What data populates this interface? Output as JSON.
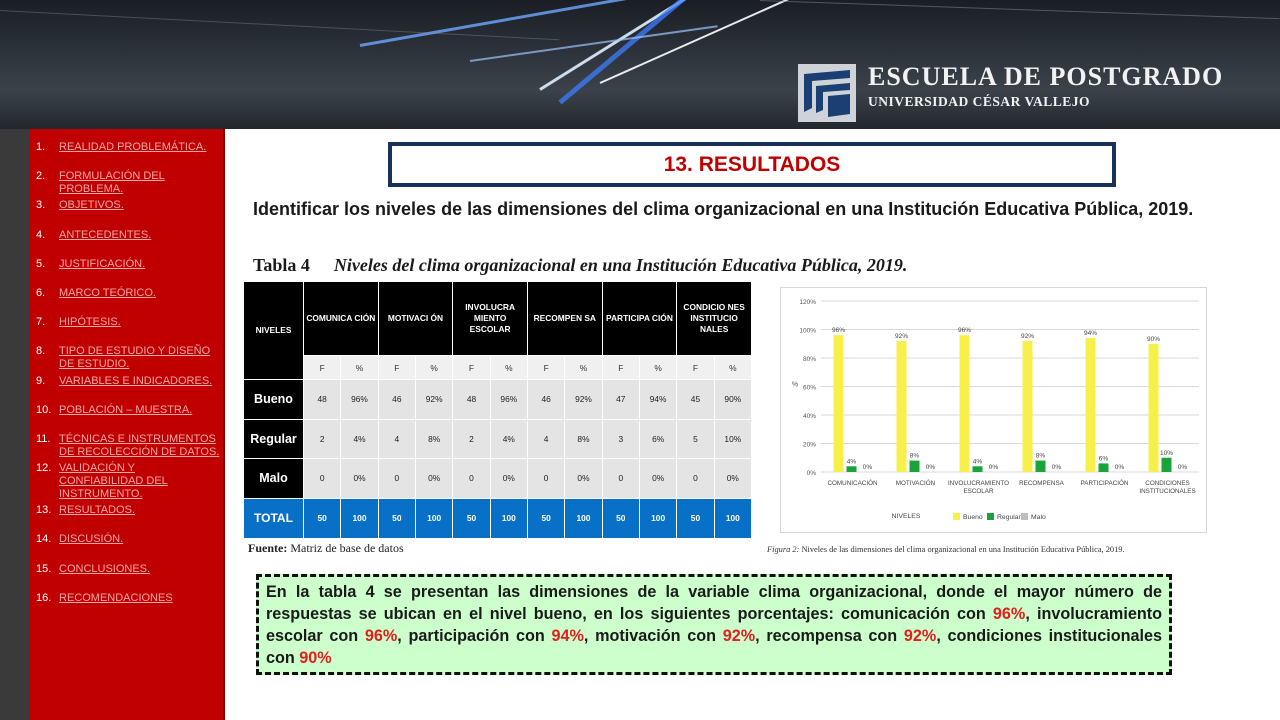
{
  "header": {
    "brand_title": "ESCUELA DE POSTGRADO",
    "brand_subtitle": "UNIVERSIDAD CÉSAR VALLEJO"
  },
  "sidebar": {
    "items": [
      {
        "num": "1.",
        "label": "REALIDAD PROBLEMÁTICA."
      },
      {
        "num": "2.",
        "label": "FORMULACIÓN DEL PROBLEMA."
      },
      {
        "num": "3.",
        "label": "OBJETIVOS."
      },
      {
        "num": "4.",
        "label": "ANTECEDENTES."
      },
      {
        "num": "5.",
        "label": "JUSTIFICACIÓN."
      },
      {
        "num": "6.",
        "label": "MARCO TEÓRICO."
      },
      {
        "num": "7.",
        "label": "HIPÓTESIS."
      },
      {
        "num": "8.",
        "label": "TIPO DE ESTUDIO Y DISEÑO DE ESTUDIO."
      },
      {
        "num": "9.",
        "label": "VARIABLES E INDICADORES."
      },
      {
        "num": "10.",
        "label": "POBLACIÓN – MUESTRA."
      },
      {
        "num": "11.",
        "label": "TÉCNICAS E INSTRUMENTOS DE RECOLECCIÓN DE DATOS."
      },
      {
        "num": "12.",
        "label": "VALIDACIÓN Y CONFIABILIDAD DEL INSTRUMENTO."
      },
      {
        "num": "13.",
        "label": "RESULTADOS."
      },
      {
        "num": "14.",
        "label": "DISCUSIÓN."
      },
      {
        "num": "15.",
        "label": "CONCLUSIONES."
      },
      {
        "num": "16.",
        "label": "RECOMENDACIONES"
      }
    ]
  },
  "main": {
    "title": "13. RESULTADOS",
    "objective": "Identificar los niveles de las dimensiones del clima organizacional en una Institución Educativa Pública, 2019.",
    "table_label": "Tabla 4",
    "table_title": "Niveles del clima organizacional en una Institución Educativa Pública, 2019.",
    "fuente_label": "Fuente:",
    "fuente_text": "Matriz de base de datos",
    "figure_label": "Figura 2:",
    "figure_caption": "Niveles de las dimensiones del clima organizacional en una Institución Educativa Pública, 2019.",
    "summary": {
      "p1": "En la tabla 4 se presentan las dimensiones de la variable clima organizacional, donde el mayor número de respuestas se ubican en el nivel bueno, en los siguientes porcentajes: comunicación con ",
      "v1": "96%",
      "p2": ", involucramiento escolar con ",
      "v2": "96%",
      "p3": ", participación con ",
      "v3": "94%",
      "p4": ", motivación con ",
      "v4": "92%",
      "p5": ", recompensa con ",
      "v5": "92%",
      "p6": ", condiciones institucionales con ",
      "v6": "90%"
    }
  },
  "table": {
    "corner": "NIVELES",
    "columns": [
      "COMUNICA CIÓN",
      "MOTIVACI ÓN",
      "INVOLUCRA MIENTO ESCOLAR",
      "RECOMPEN SA",
      "PARTICIPA CIÓN",
      "CONDICIO NES INSTITUCIO NALES"
    ],
    "sub": [
      "F",
      "%"
    ],
    "rows": [
      {
        "label": "Bueno",
        "cells": [
          "48",
          "96%",
          "46",
          "92%",
          "48",
          "96%",
          "46",
          "92%",
          "47",
          "94%",
          "45",
          "90%"
        ]
      },
      {
        "label": "Regular",
        "cells": [
          "2",
          "4%",
          "4",
          "8%",
          "2",
          "4%",
          "4",
          "8%",
          "3",
          "6%",
          "5",
          "10%"
        ]
      },
      {
        "label": "Malo",
        "cells": [
          "0",
          "0%",
          "0",
          "0%",
          "0",
          "0%",
          "0",
          "0%",
          "0",
          "0%",
          "0",
          "0%"
        ]
      },
      {
        "label": "TOTAL",
        "cells": [
          "50",
          "100",
          "50",
          "100",
          "50",
          "100",
          "50",
          "100",
          "50",
          "100",
          "50",
          "100"
        ]
      }
    ]
  },
  "chart_data": {
    "type": "bar",
    "categories": [
      "COMUNICACIÓN",
      "MOTIVACIÓN",
      "INVOLUCRAMIENTO ESCOLAR",
      "RECOMPENSA",
      "PARTICIPACIÓN",
      "CONDICIONES INSTITUCIONALES"
    ],
    "series": [
      {
        "name": "Bueno",
        "color": "#f7f04a",
        "values": [
          96,
          92,
          96,
          92,
          94,
          90
        ]
      },
      {
        "name": "Regular",
        "color": "#1aa33a",
        "values": [
          4,
          8,
          4,
          8,
          6,
          10
        ]
      },
      {
        "name": "Malo",
        "color": "#bfbfbf",
        "values": [
          0,
          0,
          0,
          0,
          0,
          0
        ]
      }
    ],
    "ylabel": "%",
    "xlabel": "NIVELES",
    "ylim": [
      0,
      120
    ],
    "yticks": [
      "0%",
      "20%",
      "40%",
      "60%",
      "80%",
      "100%",
      "120%"
    ],
    "grid": true,
    "legend": "bottom"
  }
}
